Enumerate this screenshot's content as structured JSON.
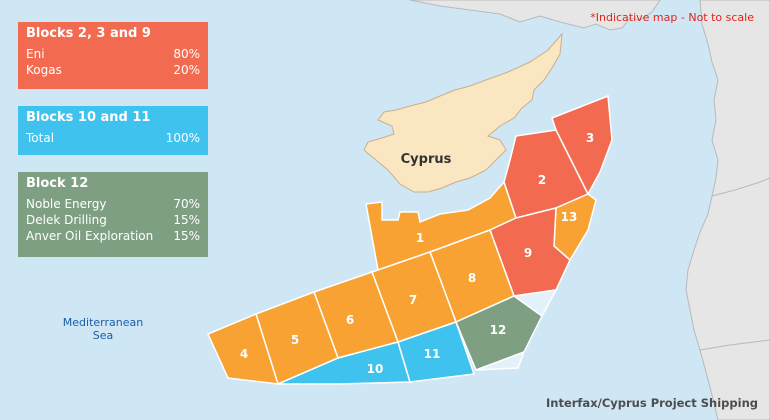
{
  "legend": [
    {
      "title": "Blocks 2, 3 and 9",
      "rows": [
        {
          "name": "Eni",
          "share": "80%"
        },
        {
          "name": "Kogas",
          "share": "20%"
        }
      ]
    },
    {
      "title": "Blocks 10 and 11",
      "rows": [
        {
          "name": "Total",
          "share": "100%"
        }
      ]
    },
    {
      "title": "Block 12",
      "rows": [
        {
          "name": "Noble Energy",
          "share": "70%"
        },
        {
          "name": "Delek Drilling",
          "share": "15%"
        },
        {
          "name": "Anver Oil Exploration",
          "share": "15%"
        }
      ]
    }
  ],
  "note": "*Indicative map - Not to scale",
  "credit": "Interfax/Cyprus Project Shipping",
  "sea_label": {
    "line1": "Mediterranean",
    "line2": "Sea"
  },
  "island_label": "Cyprus",
  "blocks": {
    "b1": "1",
    "b2": "2",
    "b3": "3",
    "b4": "4",
    "b5": "5",
    "b6": "6",
    "b7": "7",
    "b8": "8",
    "b9": "9",
    "b10": "10",
    "b11": "11",
    "b12": "12",
    "b13": "13"
  },
  "colors": {
    "sea": "#cfe6f5",
    "land": "#e6e6e6",
    "cyprus": "#fbe6c2",
    "orange": "#f7a233",
    "red": "#f26a4f",
    "blue": "#3fc3ee",
    "green": "#7f9f83"
  }
}
